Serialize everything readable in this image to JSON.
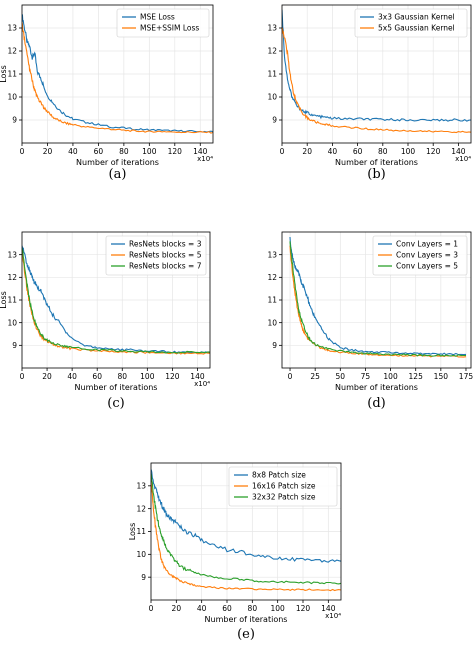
{
  "colors": {
    "series1": "#1f77b4",
    "series2": "#ff7f0e",
    "series3": "#2ca02c",
    "grid": "#e6e6e6",
    "axis": "#000000"
  },
  "chart_data": [
    {
      "type": "line",
      "caption": "(a)",
      "xlabel": "Number of iterations",
      "ylabel": "Loss",
      "xscale_label": "x10⁴",
      "xlim": [
        0,
        150
      ],
      "ylim": [
        8,
        14
      ],
      "xticks": [
        0,
        20,
        40,
        60,
        80,
        100,
        120,
        140
      ],
      "yticks": [
        9,
        10,
        11,
        12,
        13
      ],
      "grid": true,
      "legend_position": "top-right",
      "series": [
        {
          "name": "MSE Loss",
          "color": "series1",
          "x": [
            0,
            2,
            4,
            6,
            8,
            10,
            12,
            15,
            18,
            21,
            25,
            30,
            35,
            40,
            50,
            60,
            70,
            80,
            90,
            100,
            110,
            120,
            130,
            140,
            150
          ],
          "y": [
            13.6,
            13.0,
            12.4,
            12.2,
            11.7,
            11.9,
            11.1,
            10.8,
            10.3,
            10.0,
            9.7,
            9.4,
            9.2,
            9.05,
            8.9,
            8.8,
            8.7,
            8.65,
            8.6,
            8.58,
            8.55,
            8.53,
            8.52,
            8.5,
            8.5
          ]
        },
        {
          "name": "MSE+SSIM Loss",
          "color": "series2",
          "x": [
            0,
            2,
            4,
            6,
            8,
            10,
            12,
            15,
            18,
            21,
            25,
            30,
            35,
            40,
            50,
            60,
            70,
            80,
            90,
            100,
            110,
            120,
            130,
            140,
            150
          ],
          "y": [
            13.2,
            12.5,
            11.8,
            11.2,
            10.7,
            10.3,
            10.0,
            9.7,
            9.5,
            9.3,
            9.1,
            8.95,
            8.85,
            8.8,
            8.7,
            8.65,
            8.6,
            8.55,
            8.52,
            8.5,
            8.5,
            8.48,
            8.47,
            8.47,
            8.46
          ]
        }
      ]
    },
    {
      "type": "line",
      "caption": "(b)",
      "xlabel": "Number of iterations",
      "ylabel": "",
      "xscale_label": "x10⁴",
      "xlim": [
        0,
        150
      ],
      "ylim": [
        8,
        14
      ],
      "xticks": [
        0,
        20,
        40,
        60,
        80,
        100,
        120,
        140
      ],
      "yticks": [
        9,
        10,
        11,
        12,
        13
      ],
      "grid": true,
      "legend_position": "top-right",
      "series": [
        {
          "name": "3x3 Gaussian Kernel",
          "color": "series1",
          "x": [
            0,
            2,
            4,
            6,
            8,
            10,
            12,
            15,
            18,
            21,
            25,
            30,
            35,
            40,
            50,
            60,
            70,
            80,
            90,
            100,
            110,
            120,
            130,
            140,
            150
          ],
          "y": [
            13.8,
            11.8,
            10.9,
            10.4,
            10.0,
            9.8,
            9.6,
            9.45,
            9.35,
            9.3,
            9.2,
            9.15,
            9.1,
            9.08,
            9.05,
            9.05,
            9.03,
            9.02,
            9.02,
            9.0,
            9.0,
            9.0,
            9.0,
            9.0,
            9.0
          ]
        },
        {
          "name": "5x5 Gaussian Kernel",
          "color": "series2",
          "x": [
            0,
            2,
            4,
            6,
            8,
            10,
            12,
            15,
            18,
            21,
            25,
            30,
            35,
            40,
            50,
            60,
            70,
            80,
            90,
            100,
            110,
            120,
            130,
            140,
            150
          ],
          "y": [
            13.0,
            12.6,
            12.0,
            11.2,
            10.5,
            10.0,
            9.7,
            9.4,
            9.2,
            9.05,
            8.95,
            8.85,
            8.8,
            8.75,
            8.7,
            8.65,
            8.6,
            8.58,
            8.55,
            8.53,
            8.52,
            8.5,
            8.5,
            8.48,
            8.47
          ]
        }
      ]
    },
    {
      "type": "line",
      "caption": "(c)",
      "xlabel": "Number of iterations",
      "ylabel": "Loss",
      "xscale_label": "x10⁴",
      "xlim": [
        0,
        150
      ],
      "ylim": [
        8,
        14
      ],
      "xticks": [
        0,
        20,
        40,
        60,
        80,
        100,
        120,
        140
      ],
      "yticks": [
        9,
        10,
        11,
        12,
        13
      ],
      "grid": true,
      "legend_position": "top-right",
      "series": [
        {
          "name": "ResNets blocks = 3",
          "color": "series1",
          "x": [
            0,
            2,
            4,
            6,
            8,
            10,
            12,
            15,
            18,
            21,
            25,
            30,
            35,
            40,
            50,
            60,
            70,
            80,
            90,
            100,
            110,
            120,
            130,
            140,
            150
          ],
          "y": [
            13.5,
            13.0,
            12.6,
            12.3,
            12.0,
            11.8,
            11.6,
            11.4,
            11.0,
            10.7,
            10.3,
            10.0,
            9.6,
            9.3,
            9.0,
            8.9,
            8.85,
            8.8,
            8.8,
            8.75,
            8.75,
            8.7,
            8.7,
            8.7,
            8.7
          ]
        },
        {
          "name": "ResNets blocks = 5",
          "color": "series2",
          "x": [
            0,
            2,
            4,
            6,
            8,
            10,
            12,
            15,
            18,
            21,
            25,
            30,
            35,
            40,
            50,
            60,
            70,
            80,
            90,
            100,
            110,
            120,
            130,
            140,
            150
          ],
          "y": [
            13.2,
            12.3,
            11.5,
            10.9,
            10.4,
            10.0,
            9.7,
            9.4,
            9.25,
            9.15,
            9.05,
            8.95,
            8.9,
            8.85,
            8.8,
            8.75,
            8.72,
            8.7,
            8.7,
            8.68,
            8.67,
            8.66,
            8.65,
            8.65,
            8.65
          ]
        },
        {
          "name": "ResNets blocks = 7",
          "color": "series3",
          "x": [
            0,
            2,
            4,
            6,
            8,
            10,
            12,
            15,
            18,
            21,
            25,
            30,
            35,
            40,
            50,
            60,
            70,
            80,
            90,
            100,
            110,
            120,
            130,
            140,
            150
          ],
          "y": [
            13.4,
            12.5,
            11.7,
            11.0,
            10.5,
            10.1,
            9.8,
            9.5,
            9.3,
            9.2,
            9.1,
            9.0,
            8.95,
            8.9,
            8.85,
            8.8,
            8.78,
            8.75,
            8.73,
            8.72,
            8.7,
            8.7,
            8.7,
            8.7,
            8.7
          ]
        }
      ]
    },
    {
      "type": "line",
      "caption": "(d)",
      "xlabel": "Number of iterations",
      "ylabel": "",
      "xscale_label": "",
      "xlim": [
        -8,
        180
      ],
      "ylim": [
        8,
        14
      ],
      "xticks": [
        0,
        25,
        50,
        75,
        100,
        125,
        150,
        175
      ],
      "yticks": [
        9,
        10,
        11,
        12,
        13
      ],
      "grid": true,
      "legend_position": "top-right",
      "series": [
        {
          "name": "Conv Layers = 1",
          "color": "series1",
          "x": [
            0,
            2,
            4,
            6,
            8,
            10,
            12,
            15,
            18,
            21,
            25,
            30,
            35,
            40,
            50,
            60,
            70,
            80,
            90,
            100,
            110,
            120,
            130,
            140,
            150,
            160,
            175
          ],
          "y": [
            13.7,
            13.0,
            12.6,
            12.4,
            12.2,
            12.0,
            11.7,
            11.4,
            11.0,
            10.6,
            10.2,
            9.8,
            9.5,
            9.2,
            8.9,
            8.8,
            8.75,
            8.7,
            8.7,
            8.68,
            8.66,
            8.65,
            8.64,
            8.63,
            8.62,
            8.62,
            8.6
          ]
        },
        {
          "name": "Conv Layers = 3",
          "color": "series2",
          "x": [
            0,
            2,
            4,
            6,
            8,
            10,
            12,
            15,
            18,
            21,
            25,
            30,
            35,
            40,
            50,
            60,
            70,
            80,
            90,
            100,
            110,
            120,
            130,
            140,
            150,
            160,
            175
          ],
          "y": [
            13.3,
            12.4,
            11.6,
            11.0,
            10.5,
            10.1,
            9.8,
            9.5,
            9.3,
            9.15,
            9.0,
            8.9,
            8.82,
            8.77,
            8.7,
            8.65,
            8.62,
            8.6,
            8.58,
            8.56,
            8.55,
            8.54,
            8.53,
            8.52,
            8.52,
            8.51,
            8.5
          ]
        },
        {
          "name": "Conv Layers = 5",
          "color": "series3",
          "x": [
            0,
            2,
            4,
            6,
            8,
            10,
            12,
            15,
            18,
            21,
            25,
            30,
            35,
            40,
            50,
            60,
            70,
            80,
            90,
            100,
            110,
            120,
            130,
            140,
            150,
            160,
            175
          ],
          "y": [
            13.6,
            12.7,
            12.0,
            11.3,
            10.7,
            10.3,
            10.0,
            9.7,
            9.4,
            9.2,
            9.05,
            8.95,
            8.88,
            8.82,
            8.75,
            8.7,
            8.67,
            8.64,
            8.62,
            8.6,
            8.59,
            8.58,
            8.57,
            8.56,
            8.55,
            8.55,
            8.55
          ]
        }
      ]
    },
    {
      "type": "line",
      "caption": "(e)",
      "xlabel": "Number of iterations",
      "ylabel": "Loss",
      "xscale_label": "x10⁴",
      "xlim": [
        0,
        150
      ],
      "ylim": [
        8,
        14
      ],
      "xticks": [
        0,
        20,
        40,
        60,
        80,
        100,
        120,
        140
      ],
      "yticks": [
        9,
        10,
        11,
        12,
        13
      ],
      "grid": true,
      "legend_position": "top-right",
      "series": [
        {
          "name": "8x8 Patch size",
          "color": "series1",
          "x": [
            0,
            2,
            4,
            6,
            8,
            10,
            12,
            15,
            18,
            21,
            25,
            30,
            35,
            40,
            50,
            60,
            70,
            80,
            90,
            100,
            110,
            120,
            130,
            140,
            150
          ],
          "y": [
            13.7,
            13.2,
            12.8,
            12.5,
            12.2,
            12.0,
            11.8,
            11.6,
            11.5,
            11.3,
            11.1,
            10.9,
            10.8,
            10.6,
            10.4,
            10.2,
            10.1,
            10.0,
            9.9,
            9.85,
            9.8,
            9.75,
            9.7,
            9.7,
            9.7
          ]
        },
        {
          "name": "16x16 Patch size",
          "color": "series2",
          "x": [
            0,
            2,
            4,
            6,
            8,
            10,
            12,
            15,
            18,
            21,
            25,
            30,
            35,
            40,
            50,
            60,
            70,
            80,
            90,
            100,
            110,
            120,
            130,
            140,
            150
          ],
          "y": [
            13.3,
            12.0,
            11.0,
            10.3,
            9.8,
            9.5,
            9.3,
            9.1,
            9.0,
            8.9,
            8.8,
            8.7,
            8.65,
            8.6,
            8.55,
            8.5,
            8.5,
            8.48,
            8.47,
            8.46,
            8.45,
            8.45,
            8.45,
            8.44,
            8.44
          ]
        },
        {
          "name": "32x32 Patch size",
          "color": "series3",
          "x": [
            0,
            2,
            4,
            6,
            8,
            10,
            12,
            15,
            18,
            21,
            25,
            30,
            35,
            40,
            50,
            60,
            70,
            80,
            90,
            100,
            110,
            120,
            130,
            140,
            150
          ],
          "y": [
            13.5,
            12.6,
            11.9,
            11.3,
            10.9,
            10.6,
            10.3,
            10.0,
            9.8,
            9.6,
            9.4,
            9.3,
            9.2,
            9.1,
            9.0,
            8.95,
            8.9,
            8.85,
            8.82,
            8.8,
            8.78,
            8.76,
            8.75,
            8.74,
            8.73
          ]
        }
      ]
    }
  ]
}
